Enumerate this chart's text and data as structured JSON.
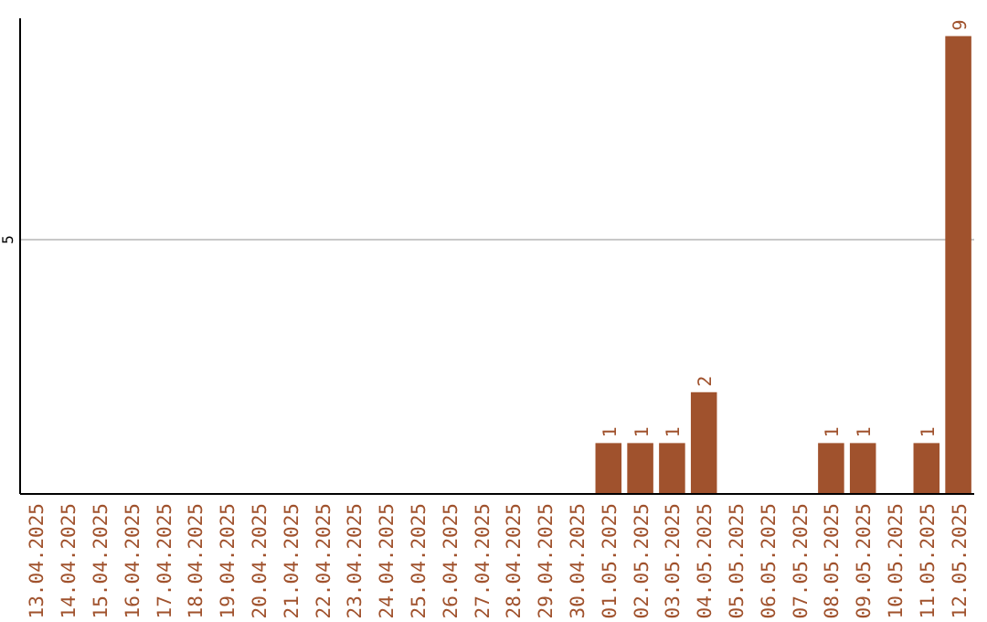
{
  "chart_data": {
    "type": "bar",
    "categories": [
      "13.04.2025",
      "14.04.2025",
      "15.04.2025",
      "16.04.2025",
      "17.04.2025",
      "18.04.2025",
      "19.04.2025",
      "20.04.2025",
      "21.04.2025",
      "22.04.2025",
      "23.04.2025",
      "24.04.2025",
      "25.04.2025",
      "26.04.2025",
      "27.04.2025",
      "28.04.2025",
      "29.04.2025",
      "30.04.2025",
      "01.05.2025",
      "02.05.2025",
      "03.05.2025",
      "04.05.2025",
      "05.05.2025",
      "06.05.2025",
      "07.05.2025",
      "08.05.2025",
      "09.05.2025",
      "10.05.2025",
      "11.05.2025",
      "12.05.2025"
    ],
    "values": [
      null,
      null,
      null,
      null,
      null,
      null,
      null,
      null,
      null,
      null,
      null,
      null,
      null,
      null,
      null,
      null,
      null,
      null,
      1,
      1,
      1,
      2,
      null,
      null,
      null,
      1,
      1,
      null,
      1,
      9
    ],
    "data_labels": true,
    "color": "#a0522d",
    "ylim": [
      0,
      9.35
    ],
    "yticks": [
      5
    ],
    "grid": "y"
  }
}
